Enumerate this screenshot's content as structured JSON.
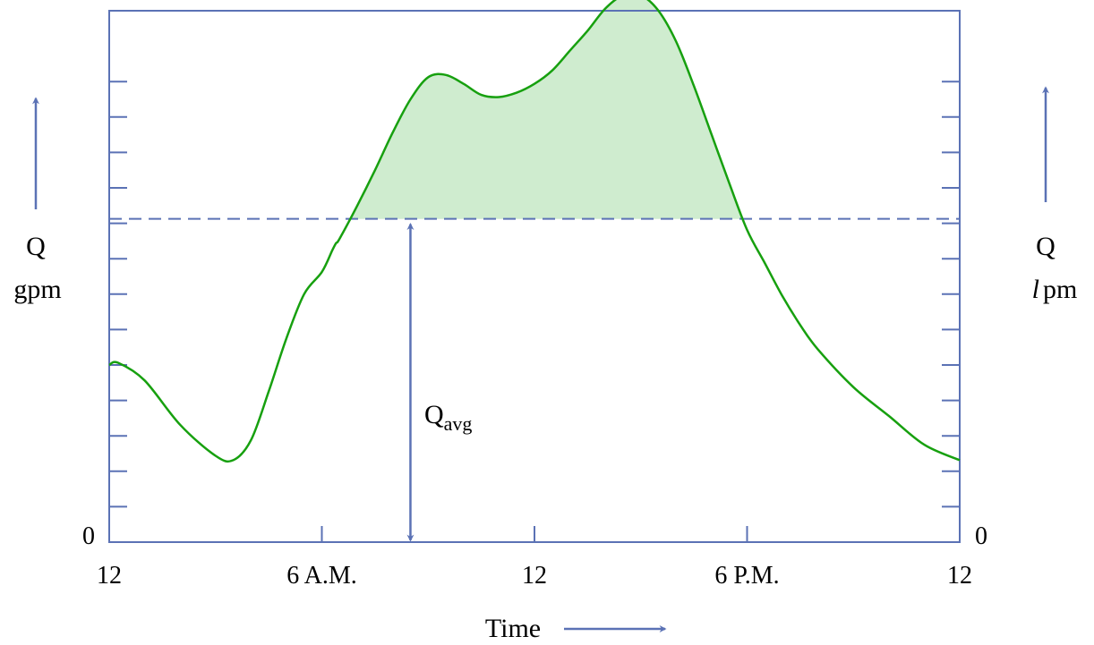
{
  "chart_data": {
    "type": "line",
    "x_unit": "hour of day",
    "xlim": [
      0,
      24
    ],
    "ylim": [
      0,
      12
    ],
    "x_tick_labels": [
      {
        "x": 0,
        "label": "12"
      },
      {
        "x": 6,
        "label": "6 A.M."
      },
      {
        "x": 12,
        "label": "12"
      },
      {
        "x": 18,
        "label": "6 P.M."
      },
      {
        "x": 24,
        "label": "12"
      }
    ],
    "y_ticks_count": 13,
    "xlabel": "Time",
    "ylabel_left": {
      "line1": "Q",
      "line2": "gpm"
    },
    "ylabel_right": {
      "line1": "Q",
      "line2_italic": "l",
      "line2_rest": "pm"
    },
    "zero_left": "0",
    "zero_right": "0",
    "series": [
      {
        "x": [
          0.0,
          0.25,
          1.0,
          2.0,
          3.0,
          3.5,
          4.0,
          4.5,
          5.0,
          5.5,
          6.0,
          6.3,
          6.4,
          6.5,
          7.0,
          7.5,
          8.0,
          8.5,
          9.0,
          9.5,
          10.0,
          10.5,
          11.0,
          11.5,
          12.0,
          12.5,
          13.0,
          13.5,
          14.0,
          14.5,
          15.0,
          15.5,
          16.0,
          16.5,
          17.0,
          17.5,
          18.0,
          18.5,
          19.0,
          19.5,
          20.0,
          21.0,
          22.0,
          23.0,
          24.0
        ],
        "y": [
          4.0,
          4.05,
          3.65,
          2.65,
          1.95,
          1.85,
          2.3,
          3.4,
          4.6,
          5.6,
          6.1,
          6.6,
          6.75,
          6.85,
          7.6,
          8.4,
          9.25,
          10.0,
          10.5,
          10.55,
          10.35,
          10.1,
          10.05,
          10.15,
          10.35,
          10.65,
          11.1,
          11.55,
          12.05,
          12.35,
          12.35,
          12.0,
          11.3,
          10.3,
          9.2,
          8.1,
          7.05,
          6.3,
          5.55,
          4.9,
          4.35,
          3.5,
          2.85,
          2.2,
          1.85
        ]
      }
    ],
    "avg": {
      "y": 7.3,
      "label_main": "Q",
      "label_sub": "avg",
      "arrow_x": 8.5
    },
    "colors": {
      "axis": "#5b72b5",
      "curve": "#17a00f",
      "fill": "#cfeccf",
      "avg_line": "#5b72b5"
    }
  }
}
